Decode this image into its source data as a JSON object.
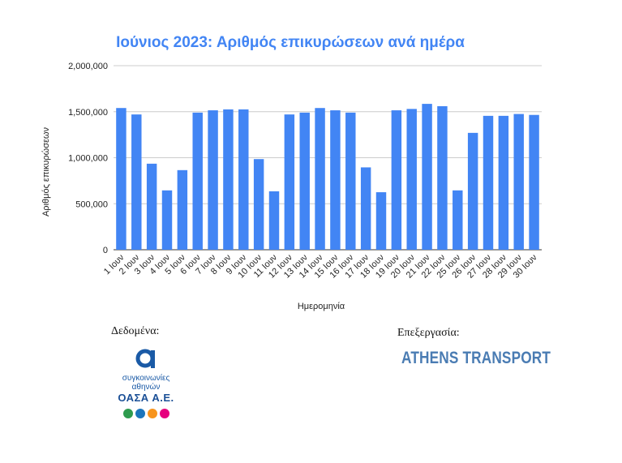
{
  "chart_data": {
    "type": "bar",
    "title": "Ιούνιος 2023: Αριθμός επικυρώσεων ανά ημέρα",
    "xlabel": "Ημερομηνία",
    "ylabel": "Αριθμός επικυρώσεων",
    "ylim": [
      0,
      2000000
    ],
    "yticks": [
      "0",
      "500,000",
      "1,000,000",
      "1,500,000",
      "2,000,000"
    ],
    "grid": true,
    "bar_color": "#4285f4",
    "categories": [
      "1 Ιουν",
      "2 Ιουν",
      "3 Ιουν",
      "4 Ιουν",
      "5 Ιουν",
      "6 Ιουν",
      "7 Ιουν",
      "8 Ιουν",
      "9 Ιουν",
      "10 Ιουν",
      "11 Ιουν",
      "12 Ιουν",
      "13 Ιουν",
      "14 Ιουν",
      "15 Ιουν",
      "16 Ιουν",
      "17 Ιουν",
      "18 Ιουν",
      "19 Ιουν",
      "20 Ιουν",
      "21 Ιουν",
      "22 Ιουν",
      "25 Ιουν",
      "26 Ιουν",
      "27 Ιουν",
      "28 Ιουν",
      "29 Ιουν",
      "30 Ιουν"
    ],
    "values": [
      1540000,
      1470000,
      935000,
      645000,
      865000,
      1490000,
      1515000,
      1525000,
      1525000,
      985000,
      635000,
      1470000,
      1490000,
      1540000,
      1515000,
      1490000,
      895000,
      625000,
      1515000,
      1530000,
      1585000,
      1560000,
      645000,
      1270000,
      1455000,
      1455000,
      1475000,
      1465000
    ]
  },
  "credits": {
    "data_label": "Δεδομένα:",
    "processing_label": "Επεξεργασία:",
    "oasa_line1": "συγκοινωνίες",
    "oasa_line2": "αθηνών",
    "oasa_line3": "ΟΑΣΑ Α.Ε.",
    "athens_transport": "ATHENS TRANSPORT"
  },
  "colors": {
    "oasa_dots": [
      "#2e9b4e",
      "#1b75bc",
      "#f7941d",
      "#e6007e"
    ]
  }
}
